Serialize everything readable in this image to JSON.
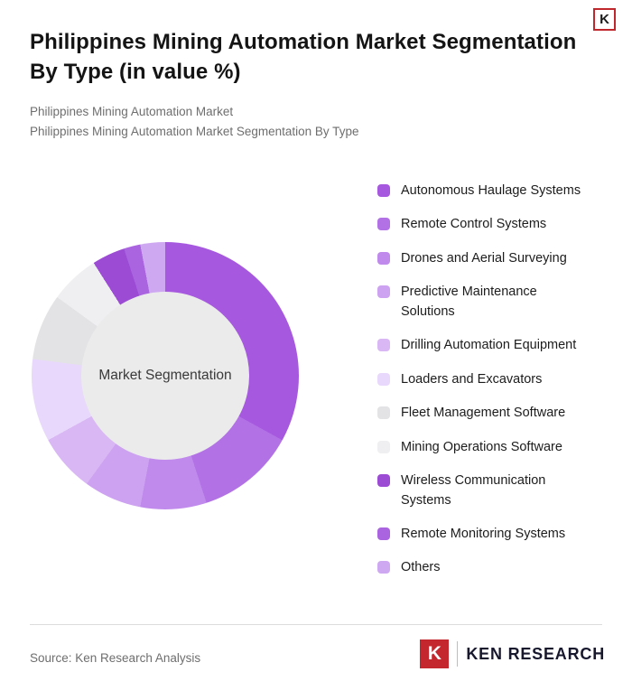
{
  "header": {
    "title": "Philippines Mining Automation Market Segmentation By Type (in value %)",
    "subtitle_lines": [
      "Philippines Mining Automation Market",
      "Philippines Mining Automation Market Segmentation By Type"
    ]
  },
  "chart_data": {
    "type": "pie",
    "donut": true,
    "center_label": "Market Segmentation",
    "legend_position": "right",
    "segments": [
      {
        "label": "Autonomous Haulage Systems",
        "value": 33,
        "color": "#a658de"
      },
      {
        "label": "Remote Control Systems",
        "value": 12,
        "color": "#b272e6"
      },
      {
        "label": "Drones and Aerial Surveying",
        "value": 8,
        "color": "#bf8aec"
      },
      {
        "label": "Predictive Maintenance Solutions",
        "value": 7,
        "color": "#cda2f0"
      },
      {
        "label": "Drilling Automation Equipment",
        "value": 7,
        "color": "#d9b7f4"
      },
      {
        "label": "Loaders and Excavators",
        "value": 10,
        "color": "#e8d8fb"
      },
      {
        "label": "Fleet Management Software",
        "value": 8,
        "color": "#e3e3e5"
      },
      {
        "label": "Mining Operations Software",
        "value": 6,
        "color": "#efeff1"
      },
      {
        "label": "Wireless Communication Systems",
        "value": 4,
        "color": "#9b4bd4"
      },
      {
        "label": "Remote Monitoring Systems",
        "value": 2,
        "color": "#aa64e0"
      },
      {
        "label": "Others",
        "value": 3,
        "color": "#cfa8f2"
      }
    ]
  },
  "footer": {
    "source": "Source: Ken Research Analysis",
    "logo_letter": "K",
    "logo_text": "KEN RESEARCH"
  }
}
